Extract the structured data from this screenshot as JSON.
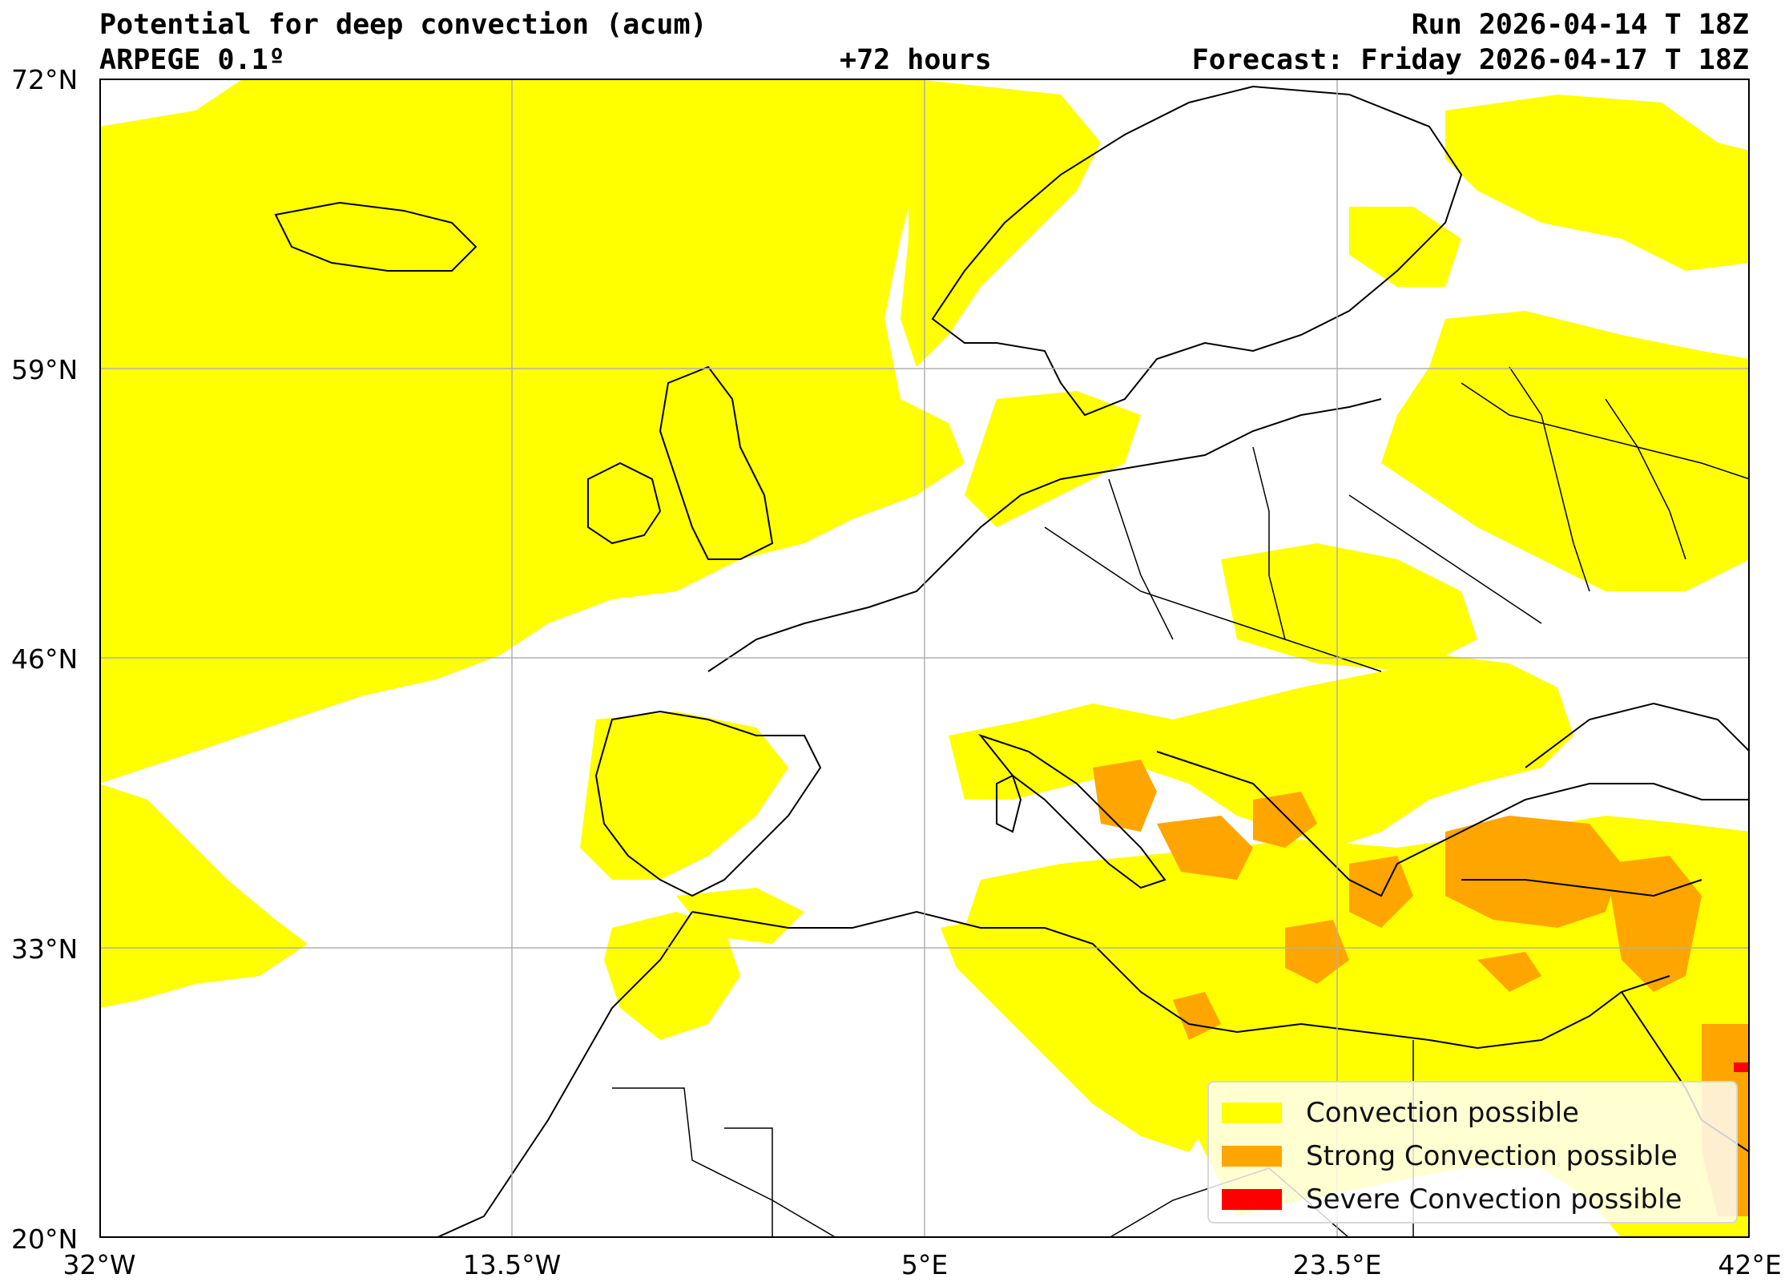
{
  "header": {
    "title": "Potential for deep convection (acum)",
    "model": "ARPEGE 0.1º",
    "lead_time": "+72 hours",
    "run": "Run 2026-04-14 T 18Z",
    "forecast": "Forecast: Friday 2026-04-17 T 18Z"
  },
  "axes": {
    "y_ticks": [
      "72°N",
      "59°N",
      "46°N",
      "33°N",
      "20°N"
    ],
    "x_ticks": [
      "32°W",
      "13.5°W",
      "5°E",
      "23.5°E",
      "42°E"
    ],
    "lon_range": [
      -32,
      42
    ],
    "lat_range": [
      20,
      72
    ],
    "grid": true
  },
  "legend": {
    "items": [
      {
        "label": "Convection possible",
        "color": "#ffff00"
      },
      {
        "label": "Strong Convection possible",
        "color": "#ffa500"
      },
      {
        "label": "Severe Convection possible",
        "color": "#ff0000"
      }
    ]
  },
  "colors": {
    "convection": "#ffff00",
    "strong": "#ffa500",
    "severe": "#ff0000",
    "coast": "#000000",
    "grid": "#b0b0b0"
  }
}
